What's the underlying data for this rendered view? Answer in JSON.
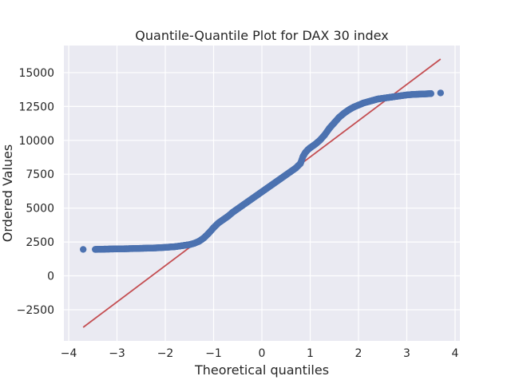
{
  "chart_data": {
    "type": "scatter",
    "title": "Quantile-Quantile Plot for DAX 30 index",
    "xlabel": "Theoretical quantiles",
    "ylabel": "Ordered Values",
    "xlim": [
      -4.1,
      4.1
    ],
    "ylim": [
      -4800,
      17000
    ],
    "x_ticks": [
      -4,
      -3,
      -2,
      -1,
      0,
      1,
      2,
      3,
      4
    ],
    "x_tick_labels": [
      "−4",
      "−3",
      "−2",
      "−1",
      "0",
      "1",
      "2",
      "3",
      "4"
    ],
    "y_ticks": [
      -2500,
      0,
      2500,
      5000,
      7500,
      10000,
      12500,
      15000
    ],
    "y_tick_labels": [
      "−2500",
      "0",
      "2500",
      "5000",
      "7500",
      "10000",
      "12500",
      "15000"
    ],
    "grid": true,
    "background": "#eaeaf2",
    "point_color": "#4c72b0",
    "line_color": "#c44e52",
    "fit_line": {
      "x": [
        -3.7,
        3.7
      ],
      "y": [
        -3800,
        16000
      ]
    },
    "series": [
      {
        "type": "scatter",
        "x": [
          -3.7,
          -3.45,
          -3.35,
          -3.25,
          -3.1,
          -3.0,
          -2.8,
          -2.6,
          -2.4,
          -2.2,
          -2.0,
          -1.8,
          -1.6,
          -1.5,
          -1.4,
          -1.3,
          -1.2,
          -1.1,
          -1.0,
          -0.9,
          -0.8,
          -0.7,
          -0.6,
          -0.5,
          -0.4,
          -0.3,
          -0.2,
          -0.1,
          0.0,
          0.1,
          0.2,
          0.3,
          0.4,
          0.5,
          0.6,
          0.7,
          0.8,
          0.85,
          0.9,
          0.95,
          1.0,
          1.1,
          1.2,
          1.3,
          1.4,
          1.5,
          1.6,
          1.7,
          1.8,
          1.9,
          2.0,
          2.1,
          2.2,
          2.3,
          2.4,
          2.5,
          2.6,
          2.7,
          2.8,
          2.9,
          3.0,
          3.1,
          3.2,
          3.35,
          3.5,
          3.7
        ],
        "y": [
          1950,
          1950,
          1960,
          1970,
          1980,
          1990,
          2000,
          2020,
          2040,
          2060,
          2100,
          2150,
          2250,
          2300,
          2400,
          2550,
          2800,
          3150,
          3550,
          3900,
          4150,
          4400,
          4700,
          4950,
          5200,
          5450,
          5700,
          5950,
          6200,
          6450,
          6700,
          6950,
          7200,
          7450,
          7700,
          7950,
          8300,
          8800,
          9100,
          9300,
          9450,
          9700,
          10000,
          10400,
          10900,
          11300,
          11700,
          12000,
          12250,
          12450,
          12600,
          12750,
          12850,
          12950,
          13050,
          13100,
          13150,
          13200,
          13250,
          13300,
          13350,
          13380,
          13400,
          13420,
          13450,
          13500
        ]
      }
    ]
  }
}
